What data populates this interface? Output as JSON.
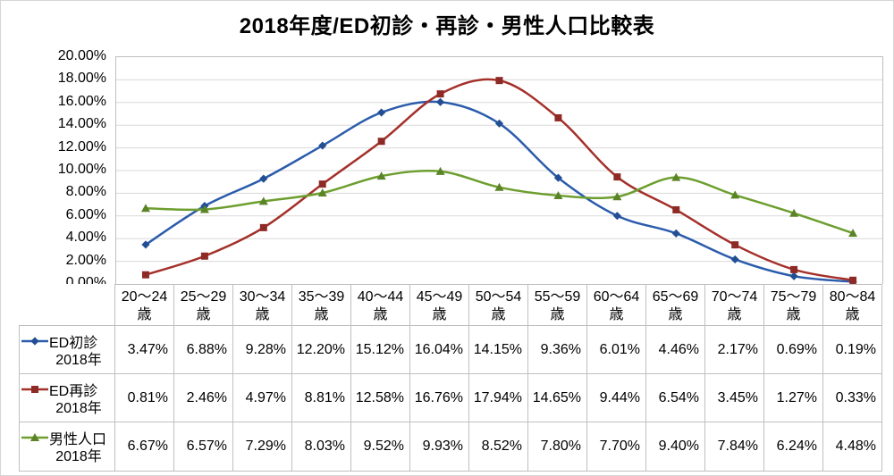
{
  "title": "2018年度/ED初診・再診・男性人口比較表",
  "chart_data": {
    "type": "line",
    "smoothed": true,
    "title": "2018年度/ED初診・再診・男性人口比較表",
    "categories": [
      "20〜24歳",
      "25〜29歳",
      "30〜34歳",
      "35〜39歳",
      "40〜44歳",
      "45〜49歳",
      "50〜54歳",
      "55〜59歳",
      "60〜64歳",
      "65〜69歳",
      "70〜74歳",
      "75〜79歳",
      "80〜84歳"
    ],
    "series": [
      {
        "name": "ED初診 2018年",
        "marker": "diamond",
        "color": "#2b5cab",
        "marker_color": "#234e93",
        "values": [
          3.47,
          6.88,
          9.28,
          12.2,
          15.12,
          16.04,
          14.15,
          9.36,
          6.01,
          4.46,
          2.17,
          0.69,
          0.19
        ]
      },
      {
        "name": "ED再診 2018年",
        "marker": "square",
        "color": "#a4302a",
        "marker_color": "#8e2a25",
        "values": [
          0.81,
          2.46,
          4.97,
          8.81,
          12.58,
          16.76,
          17.94,
          14.65,
          9.44,
          6.54,
          3.45,
          1.27,
          0.33
        ]
      },
      {
        "name": "男性人口 2018年",
        "marker": "triangle",
        "color": "#6d9e2f",
        "marker_color": "#5a8426",
        "values": [
          6.67,
          6.57,
          7.29,
          8.03,
          9.52,
          9.93,
          8.52,
          7.8,
          7.7,
          9.4,
          7.84,
          6.24,
          4.48
        ]
      }
    ],
    "xlabel": "",
    "ylabel": "",
    "ylim": [
      0,
      20
    ],
    "ytick_step": 2,
    "yticks": [
      "20.00%",
      "18.00%",
      "16.00%",
      "14.00%",
      "12.00%",
      "10.00%",
      "8.00%",
      "6.00%",
      "4.00%",
      "2.00%",
      "0.00%"
    ],
    "grid": true,
    "legend_position": "data-table-left",
    "colors": {
      "gridline": "#d9d9d9",
      "plot_border": "#bfbfbf",
      "table_border": "#bfbfbf",
      "text": "#000000"
    }
  },
  "table": {
    "category_line1": [
      "20〜24",
      "25〜29",
      "30〜34",
      "35〜39",
      "40〜44",
      "45〜49",
      "50〜54",
      "55〜59",
      "60〜64",
      "65〜69",
      "70〜74",
      "75〜79",
      "80〜84"
    ],
    "category_suffix": "歳",
    "rows": [
      {
        "label_line1": "ED初診",
        "label_line2": "2018年",
        "values": [
          "3.47%",
          "6.88%",
          "9.28%",
          "12.20%",
          "15.12%",
          "16.04%",
          "14.15%",
          "9.36%",
          "6.01%",
          "4.46%",
          "2.17%",
          "0.69%",
          "0.19%"
        ]
      },
      {
        "label_line1": "ED再診",
        "label_line2": "2018年",
        "values": [
          "0.81%",
          "2.46%",
          "4.97%",
          "8.81%",
          "12.58%",
          "16.76%",
          "17.94%",
          "14.65%",
          "9.44%",
          "6.54%",
          "3.45%",
          "1.27%",
          "0.33%"
        ]
      },
      {
        "label_line1": "男性人口",
        "label_line2": "2018年",
        "values": [
          "6.67%",
          "6.57%",
          "7.29%",
          "8.03%",
          "9.52%",
          "9.93%",
          "8.52%",
          "7.80%",
          "7.70%",
          "9.40%",
          "7.84%",
          "6.24%",
          "4.48%"
        ]
      }
    ]
  }
}
